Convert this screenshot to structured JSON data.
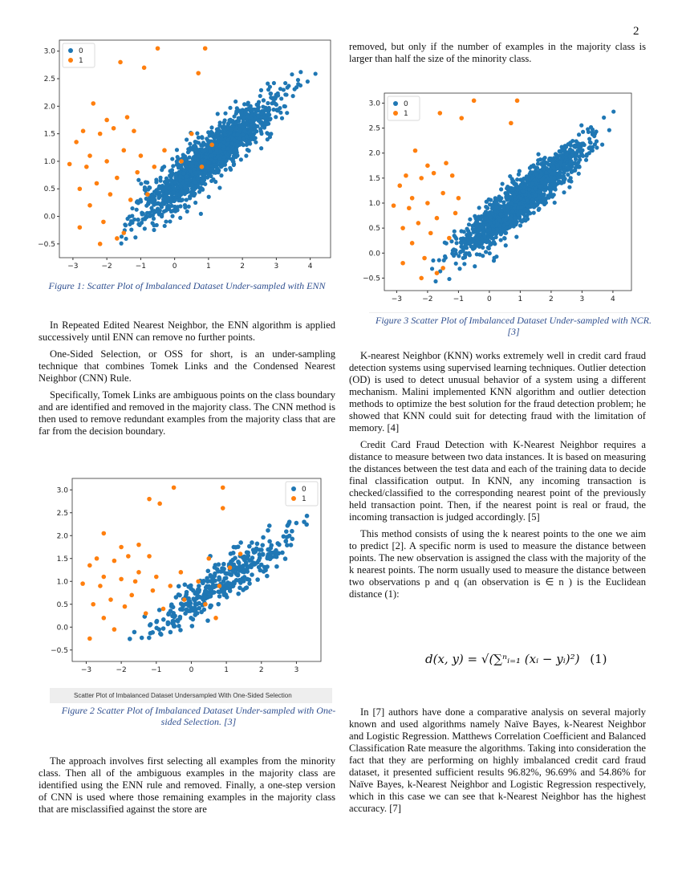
{
  "page_number": "2",
  "left": {
    "fig1_caption": "Figure 1: Scatter Plot of Imbalanced Dataset Under-sampled with ENN",
    "paragraphs": [
      "In Repeated Edited Nearest Neighbor, the ENN algorithm is applied successively until ENN can remove no further points.",
      "One-Sided Selection, or OSS for short, is an under-sampling technique that combines Tomek Links and the Condensed Nearest Neighbor (CNN) Rule.",
      "Specifically, Tomek Links are ambiguous points on the class boundary and are identified and removed in the majority class. The CNN method is then used to remove redundant examples from the majority class that are far from the decision boundary."
    ],
    "fig2_inner_title": "Scatter Plot of Imbalanced Dataset Undersampled With One-Sided Selection",
    "fig2_caption": "Figure 2 Scatter Plot of Imbalanced Dataset Under-sampled with One-sided Selection. [3]",
    "paragraphs2": [
      "The approach involves first selecting all examples from the minority class. Then all of the ambiguous examples in the majority class are identified using the ENN rule and removed. Finally, a one-step version of CNN is used where those remaining examples in the majority class that are misclassified against the store are"
    ]
  },
  "right": {
    "top_text": "removed, but only if the number of examples in the majority class is larger than half the size of the minority class.",
    "fig3_caption": "Figure 3 Scatter Plot of Imbalanced Dataset Under-sampled with NCR. [3]",
    "paragraphs": [
      "K-nearest Neighbor (KNN) works extremely well in credit card fraud detection systems using supervised learning techniques. Outlier detection (OD) is used to detect unusual behavior of a system using a different mechanism. Malini implemented KNN algorithm and outlier detection methods to optimize the best solution for the fraud detection problem; he showed that KNN could suit for detecting fraud with the limitation of memory. [4]",
      "Credit Card Fraud Detection with K-Nearest Neighbor requires a distance to measure between two data instances. It is based on measuring the distances between the test data and each of the training data to decide final classification output. In KNN, any incoming transaction is checked/classified to the corresponding nearest point of the previously held transaction point. Then, if the nearest point is real or fraud, the incoming transaction is judged accordingly. [5]",
      "This method consists of using the k nearest points to the one we aim to predict [2]. A specific norm is used to measure the distance between points. The new observation is assigned the class with the majority of the k nearest points. The norm usually used to measure the distance between two observations p and q (an observation is ∈ n ) is the Euclidean distance (1):"
    ],
    "equation": "d(x, y) = √(∑ⁿᵢ₌₁ (xᵢ − yᵢ)²)",
    "equation_number": "(1)",
    "paragraphs2": [
      "In [7] authors have done a comparative analysis on several majorly known and used algorithms namely Naïve Bayes, k-Nearest Neighbor and Logistic Regression. Matthews Correlation Coefficient and Balanced Classification Rate measure the algorithms. Taking into consideration the fact that they are performing on highly imbalanced credit card fraud dataset, it presented sufficient results 96.82%, 96.69% and 54.86% for Naïve Bayes, k-Nearest Neighbor and Logistic Regression respectively, which in this case we can see that k-Nearest Neighbor has the highest accuracy. [7]"
    ]
  },
  "chart_data": [
    {
      "type": "scatter",
      "id": "fig1",
      "legend": [
        "0",
        "1"
      ],
      "legend_placement": "top-left",
      "colors": {
        "0": "#1f77b4",
        "1": "#ff7f0e"
      },
      "xlim": [
        -3.4,
        4.6
      ],
      "ylim": [
        -0.75,
        3.2
      ],
      "xticks": [
        -3,
        -2,
        -1,
        0,
        1,
        2,
        3,
        4
      ],
      "yticks": [
        -0.5,
        0.0,
        0.5,
        1.0,
        1.5,
        2.0,
        2.5,
        3.0
      ],
      "ytick_labels": [
        "−0.5",
        "0.0",
        "0.5",
        "1.0",
        "1.5",
        "2.0",
        "2.5",
        "3.0"
      ],
      "class0_count": 1500,
      "class1": [
        [
          -0.5,
          3.05
        ],
        [
          0.9,
          3.05
        ],
        [
          -1.6,
          2.8
        ],
        [
          -0.9,
          2.7
        ],
        [
          0.7,
          2.6
        ],
        [
          -2.4,
          2.05
        ],
        [
          -2.0,
          1.75
        ],
        [
          -1.4,
          1.8
        ],
        [
          -1.8,
          1.6
        ],
        [
          -2.7,
          1.55
        ],
        [
          -2.9,
          1.35
        ],
        [
          -2.2,
          1.5
        ],
        [
          -1.2,
          1.55
        ],
        [
          -3.1,
          0.95
        ],
        [
          -2.5,
          1.1
        ],
        [
          -2.0,
          1.0
        ],
        [
          -1.5,
          1.2
        ],
        [
          -1.0,
          1.1
        ],
        [
          -2.8,
          0.5
        ],
        [
          -2.3,
          0.6
        ],
        [
          -1.9,
          0.4
        ],
        [
          -1.7,
          0.7
        ],
        [
          -2.5,
          0.2
        ],
        [
          -2.1,
          -0.1
        ],
        [
          -1.7,
          -0.4
        ],
        [
          -2.8,
          -0.2
        ],
        [
          -1.3,
          0.3
        ],
        [
          -0.6,
          0.9
        ],
        [
          -0.3,
          1.2
        ],
        [
          0.2,
          1.0
        ],
        [
          0.5,
          1.5
        ],
        [
          0.8,
          0.9
        ],
        [
          1.1,
          1.3
        ],
        [
          -0.8,
          0.4
        ],
        [
          -2.2,
          -0.5
        ],
        [
          -1.5,
          -0.3
        ],
        [
          -2.6,
          0.9
        ],
        [
          -1.1,
          0.8
        ]
      ]
    },
    {
      "type": "scatter",
      "id": "fig2",
      "legend": [
        "0",
        "1"
      ],
      "legend_placement": "top-right",
      "colors": {
        "0": "#1f77b4",
        "1": "#ff7f0e"
      },
      "xlim": [
        -3.4,
        3.7
      ],
      "ylim": [
        -0.75,
        3.25
      ],
      "xticks": [
        -3,
        -2,
        -1,
        0,
        1,
        2,
        3
      ],
      "yticks": [
        -0.5,
        0.0,
        0.5,
        1.0,
        1.5,
        2.0,
        2.5,
        3.0
      ],
      "ytick_labels": [
        "−0.5",
        "0.0",
        "0.5",
        "1.0",
        "1.5",
        "2.0",
        "2.5",
        "3.0"
      ],
      "class0_count": 380,
      "class1": [
        [
          -0.5,
          3.05
        ],
        [
          0.9,
          3.05
        ],
        [
          -1.2,
          2.8
        ],
        [
          -0.9,
          2.7
        ],
        [
          0.9,
          2.6
        ],
        [
          -2.5,
          2.05
        ],
        [
          -2.0,
          1.75
        ],
        [
          -1.5,
          1.8
        ],
        [
          -1.8,
          1.55
        ],
        [
          -2.7,
          1.5
        ],
        [
          -2.9,
          1.35
        ],
        [
          -2.2,
          1.45
        ],
        [
          -1.2,
          1.55
        ],
        [
          -3.1,
          0.95
        ],
        [
          -2.5,
          1.1
        ],
        [
          -2.0,
          1.05
        ],
        [
          -1.5,
          1.2
        ],
        [
          -1.0,
          1.1
        ],
        [
          -2.8,
          0.5
        ],
        [
          -2.3,
          0.6
        ],
        [
          -1.9,
          0.45
        ],
        [
          -1.7,
          0.7
        ],
        [
          -2.5,
          0.2
        ],
        [
          -2.2,
          -0.05
        ],
        [
          -2.9,
          -0.25
        ],
        [
          -1.3,
          0.3
        ],
        [
          -0.6,
          0.9
        ],
        [
          -0.3,
          1.2
        ],
        [
          0.2,
          1.0
        ],
        [
          0.5,
          1.5
        ],
        [
          0.8,
          0.9
        ],
        [
          1.1,
          1.3
        ],
        [
          -0.8,
          0.4
        ],
        [
          -1.6,
          1.0
        ],
        [
          -2.6,
          0.9
        ],
        [
          -1.1,
          0.8
        ],
        [
          0.4,
          0.5
        ],
        [
          -0.2,
          0.6
        ],
        [
          0.7,
          0.2
        ],
        [
          1.4,
          1.6
        ]
      ]
    },
    {
      "type": "scatter",
      "id": "fig3",
      "legend": [
        "0",
        "1"
      ],
      "legend_placement": "top-left",
      "colors": {
        "0": "#1f77b4",
        "1": "#ff7f0e"
      },
      "xlim": [
        -3.4,
        4.6
      ],
      "ylim": [
        -0.75,
        3.2
      ],
      "xticks": [
        -3,
        -2,
        -1,
        0,
        1,
        2,
        3,
        4
      ],
      "yticks": [
        -0.5,
        0.0,
        0.5,
        1.0,
        1.5,
        2.0,
        2.5,
        3.0
      ],
      "ytick_labels": [
        "−0.5",
        "0.0",
        "0.5",
        "1.0",
        "1.5",
        "2.0",
        "2.5",
        "3.0"
      ],
      "class0_count": 1500,
      "class1": [
        [
          -0.5,
          3.05
        ],
        [
          0.9,
          3.05
        ],
        [
          -1.6,
          2.8
        ],
        [
          -0.9,
          2.7
        ],
        [
          0.7,
          2.6
        ],
        [
          -2.4,
          2.05
        ],
        [
          -2.0,
          1.75
        ],
        [
          -1.4,
          1.8
        ],
        [
          -1.8,
          1.6
        ],
        [
          -2.7,
          1.55
        ],
        [
          -2.9,
          1.35
        ],
        [
          -2.2,
          1.5
        ],
        [
          -1.2,
          1.55
        ],
        [
          -3.1,
          0.95
        ],
        [
          -2.5,
          1.1
        ],
        [
          -2.0,
          1.0
        ],
        [
          -1.5,
          1.2
        ],
        [
          -1.0,
          1.1
        ],
        [
          -2.8,
          0.5
        ],
        [
          -2.3,
          0.6
        ],
        [
          -1.9,
          0.4
        ],
        [
          -1.7,
          0.7
        ],
        [
          -2.5,
          0.2
        ],
        [
          -2.1,
          -0.1
        ],
        [
          -1.7,
          -0.4
        ],
        [
          -2.8,
          -0.2
        ],
        [
          -1.3,
          0.3
        ],
        [
          -2.2,
          -0.5
        ],
        [
          -1.5,
          -0.3
        ],
        [
          -2.6,
          0.9
        ],
        [
          -1.1,
          0.8
        ]
      ]
    }
  ]
}
